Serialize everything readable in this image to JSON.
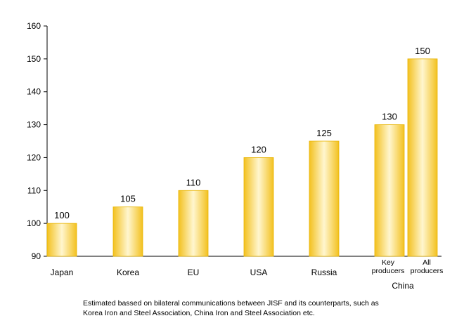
{
  "chart_data": {
    "type": "bar",
    "title": "",
    "xlabel": "",
    "ylabel": "",
    "ylim": [
      90,
      160
    ],
    "yticks": [
      90,
      100,
      110,
      120,
      130,
      140,
      150,
      160
    ],
    "grid": false,
    "categories": [
      "Japan",
      "Korea",
      "EU",
      "USA",
      "Russia",
      "Key producers",
      "All producers"
    ],
    "category_lines": [
      [
        "Japan"
      ],
      [
        "Korea"
      ],
      [
        "EU"
      ],
      [
        "USA"
      ],
      [
        "Russia"
      ],
      [
        "Key",
        "producers"
      ],
      [
        "All",
        "producers"
      ]
    ],
    "values": [
      100,
      105,
      110,
      120,
      125,
      130,
      150
    ],
    "group_label": {
      "text": "China",
      "categories": [
        "Key producers",
        "All producers"
      ]
    },
    "bar_color": "#f3c11f",
    "footnote": [
      "Estimated bassed on bilateral communications between JISF and its counterparts, such as",
      "Korea Iron and Steel Association, China Iron and Steel Association etc."
    ]
  }
}
